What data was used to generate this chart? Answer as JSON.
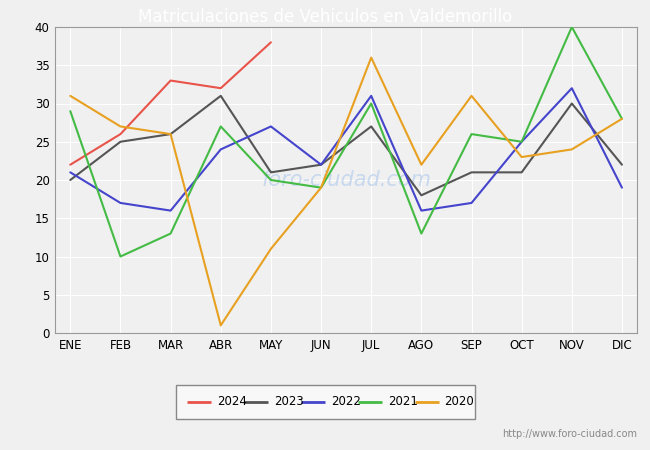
{
  "title": "Matriculaciones de Vehiculos en Valdemorillo",
  "months": [
    "ENE",
    "FEB",
    "MAR",
    "ABR",
    "MAY",
    "JUN",
    "JUL",
    "AGO",
    "SEP",
    "OCT",
    "NOV",
    "DIC"
  ],
  "series": {
    "2024": {
      "color": "#e8534a",
      "data": [
        22,
        26,
        33,
        32,
        38,
        null,
        null,
        null,
        null,
        null,
        null,
        null
      ]
    },
    "2023": {
      "color": "#555555",
      "data": [
        20,
        25,
        26,
        31,
        21,
        22,
        27,
        18,
        21,
        21,
        30,
        22
      ]
    },
    "2022": {
      "color": "#4444cc",
      "data": [
        21,
        17,
        16,
        24,
        27,
        22,
        31,
        16,
        17,
        25,
        32,
        19
      ]
    },
    "2021": {
      "color": "#44bb44",
      "data": [
        29,
        10,
        13,
        27,
        20,
        19,
        30,
        13,
        26,
        25,
        40,
        28
      ]
    },
    "2020": {
      "color": "#e8a020",
      "data": [
        31,
        27,
        26,
        1,
        11,
        19,
        36,
        22,
        31,
        23,
        24,
        28
      ]
    }
  },
  "year_order": [
    "2024",
    "2023",
    "2022",
    "2021",
    "2020"
  ],
  "ylim": [
    0,
    40
  ],
  "yticks": [
    0,
    5,
    10,
    15,
    20,
    25,
    30,
    35,
    40
  ],
  "header_color": "#4d7cc7",
  "border_color": "#4d7cc7",
  "plot_bg_color": "#f0f0f0",
  "grid_color": "#ffffff",
  "title_font_color": "#ffffff",
  "watermark_text": "foro-ciudad.com",
  "watermark_color": "#c8d8ee",
  "url_text": "http://www.foro-ciudad.com",
  "url_color": "#888888",
  "legend_bg": "#f8f8f8",
  "legend_border": "#888888"
}
